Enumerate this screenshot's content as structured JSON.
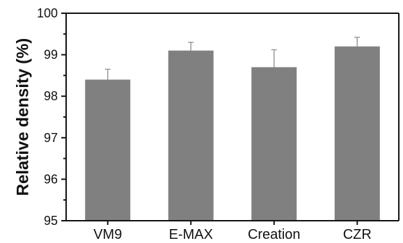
{
  "chart_data": {
    "type": "bar",
    "title": "",
    "xlabel": "",
    "ylabel": "Relative density (%)",
    "categories": [
      "VM9",
      "E-MAX",
      "Creation",
      "CZR"
    ],
    "values": [
      98.4,
      99.1,
      98.7,
      99.2
    ],
    "error_plus": [
      0.25,
      0.2,
      0.42,
      0.22
    ],
    "ylim": [
      95,
      100
    ],
    "yticks": [
      95,
      96,
      97,
      98,
      99,
      100
    ],
    "grid": false,
    "legend": "none",
    "colors": {
      "bar": "#808080",
      "error_bar": "#9a9a9a",
      "axis": "#111111"
    }
  }
}
